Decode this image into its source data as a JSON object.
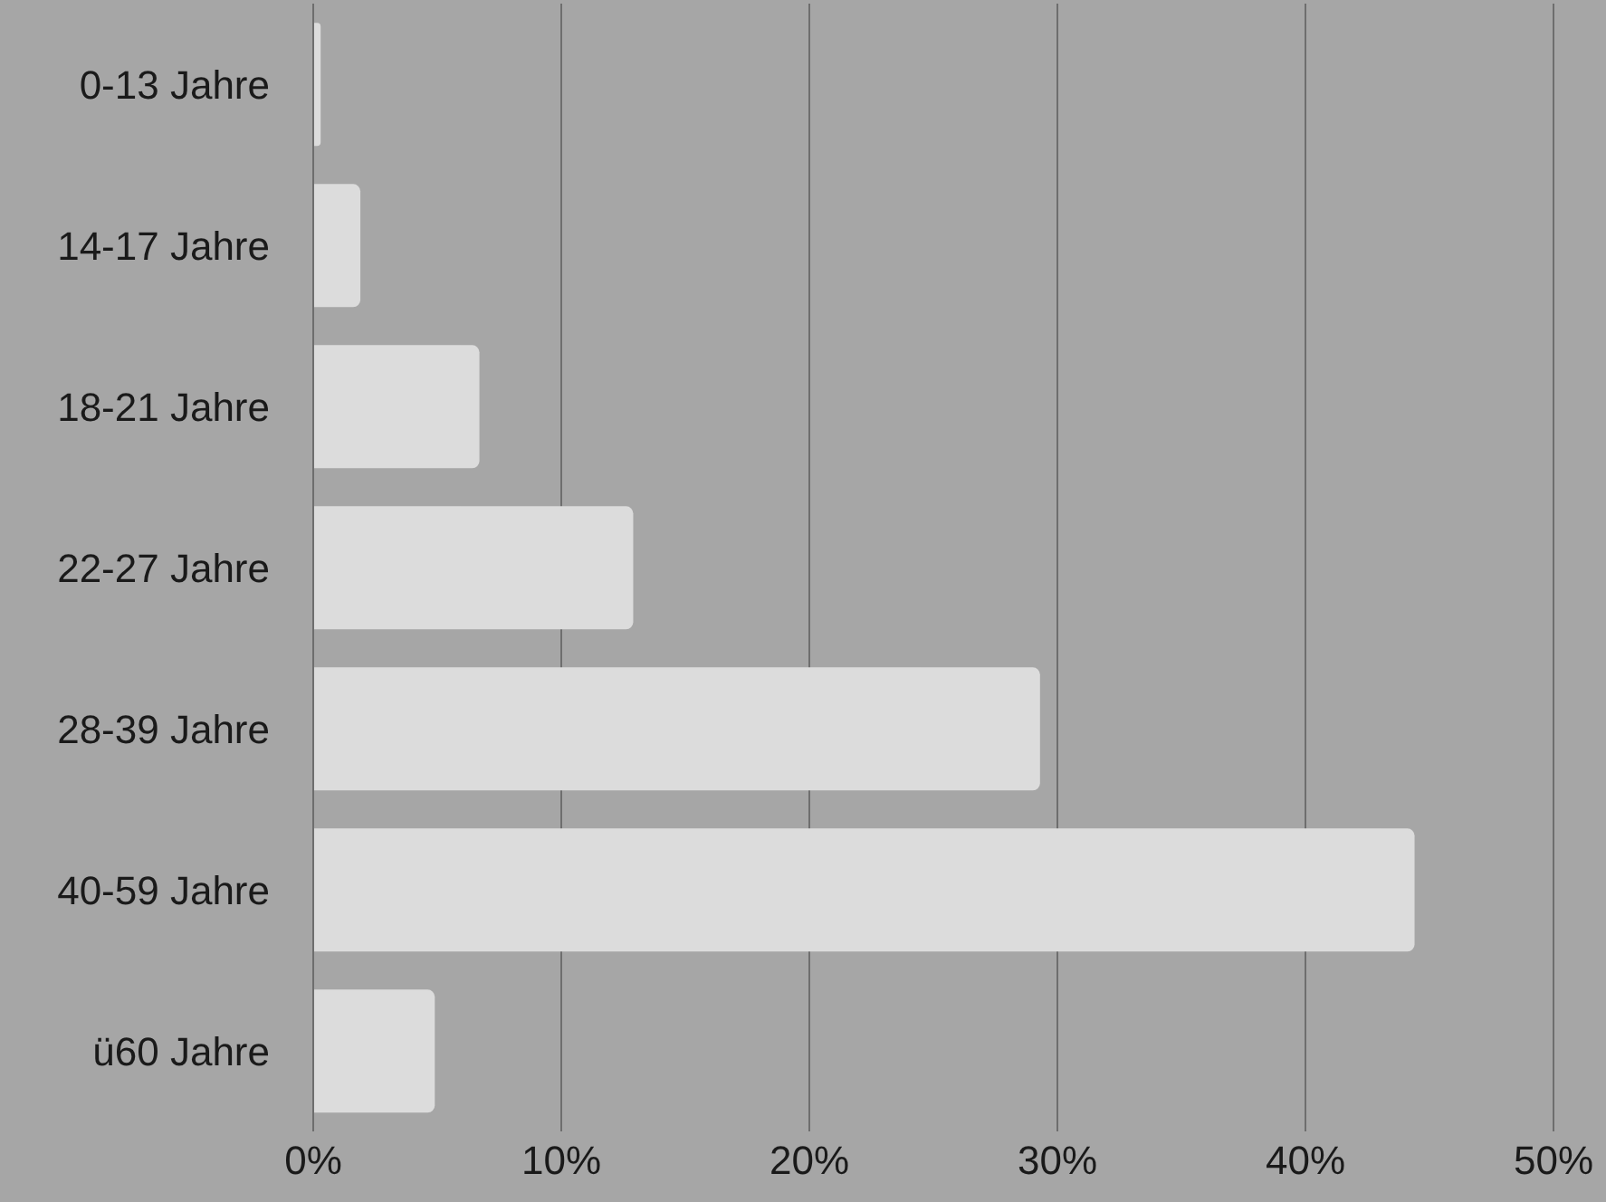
{
  "chart_data": {
    "type": "bar",
    "orientation": "horizontal",
    "categories": [
      "0-13 Jahre",
      "14-17 Jahre",
      "18-21 Jahre",
      "22-27 Jahre",
      "28-39 Jahre",
      "40-59 Jahre",
      "ü60 Jahre"
    ],
    "values": [
      0.3,
      1.9,
      6.7,
      12.9,
      29.3,
      44.4,
      4.9
    ],
    "color": "#dcdcdc",
    "xlim": [
      0,
      50
    ],
    "xticks": [
      {
        "value": 0,
        "label": "0%"
      },
      {
        "value": 10,
        "label": "10%"
      },
      {
        "value": 20,
        "label": "20%"
      },
      {
        "value": 30,
        "label": "30%"
      },
      {
        "value": 40,
        "label": "40%"
      },
      {
        "value": 50,
        "label": "50%"
      }
    ],
    "grid": "x"
  }
}
